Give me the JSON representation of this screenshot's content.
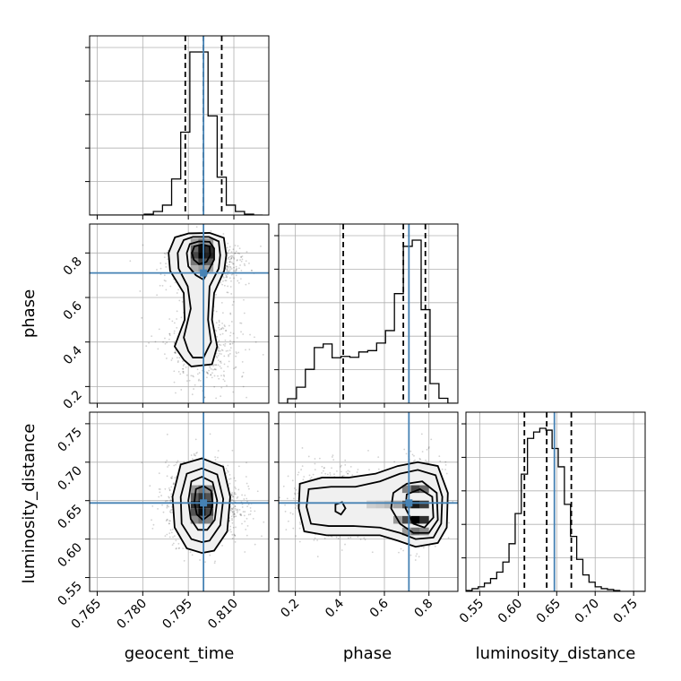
{
  "chart_data": {
    "type": "corner",
    "parameters": [
      "geocent_time",
      "phase",
      "luminosity_distance"
    ],
    "truth_color": "#4682b4",
    "truths": {
      "geocent_time": 0.8,
      "phase": 0.71,
      "luminosity_distance": 0.647
    },
    "ranges": {
      "geocent_time": [
        0.7625,
        0.8215
      ],
      "phase": [
        0.125,
        0.93
      ],
      "luminosity_distance": [
        0.532,
        0.765
      ]
    },
    "ticks": {
      "geocent_time": [
        0.765,
        0.78,
        0.795,
        0.81
      ],
      "phase": [
        0.2,
        0.4,
        0.6,
        0.8
      ],
      "luminosity_distance": [
        0.55,
        0.6,
        0.65,
        0.7,
        0.75
      ]
    },
    "tick_labels": {
      "geocent_time": [
        "0.765",
        "0.780",
        "0.795",
        "0.810"
      ],
      "phase": [
        "0.2",
        "0.4",
        "0.6",
        "0.8"
      ],
      "luminosity_distance": [
        "0.55",
        "0.60",
        "0.65",
        "0.70",
        "0.75"
      ]
    },
    "axis_labels": {
      "geocent_time": "geocent_time",
      "phase": "phase",
      "luminosity_distance": "luminosity_distance"
    },
    "quantiles": {
      "geocent_time": [
        0.794,
        0.8,
        0.806
      ],
      "phase": [
        0.415,
        0.685,
        0.784
      ],
      "luminosity_distance": [
        0.608,
        0.637,
        0.669
      ]
    },
    "histograms": {
      "geocent_time": {
        "edges": [
          0.7625,
          0.7655,
          0.7685,
          0.7715,
          0.7745,
          0.7775,
          0.7805,
          0.7835,
          0.7865,
          0.7895,
          0.7925,
          0.7955,
          0.7985,
          0.8015,
          0.8045,
          0.8075,
          0.8105,
          0.8135,
          0.8165,
          0.8195
        ],
        "counts": [
          0,
          0,
          0,
          0,
          0,
          0,
          1,
          4,
          11,
          40,
          92,
          181,
          181,
          110,
          42,
          11,
          4,
          1,
          0
        ]
      },
      "phase": {
        "edges": [
          0.125,
          0.165,
          0.205,
          0.245,
          0.285,
          0.325,
          0.365,
          0.405,
          0.445,
          0.485,
          0.525,
          0.565,
          0.605,
          0.645,
          0.685,
          0.725,
          0.765,
          0.805,
          0.845,
          0.885,
          0.925
        ],
        "counts": [
          0,
          10,
          36,
          76,
          125,
          133,
          102,
          105,
          103,
          115,
          118,
          135,
          163,
          246,
          352,
          366,
          210,
          44,
          11,
          0
        ]
      },
      "luminosity_distance": {
        "edges": [
          0.532,
          0.54,
          0.548,
          0.556,
          0.564,
          0.572,
          0.58,
          0.588,
          0.596,
          0.604,
          0.612,
          0.62,
          0.628,
          0.636,
          0.644,
          0.652,
          0.66,
          0.668,
          0.676,
          0.684,
          0.692,
          0.7,
          0.708,
          0.716,
          0.724,
          0.732,
          0.74,
          0.748,
          0.756,
          0.764
        ],
        "counts": [
          1,
          3,
          5,
          9,
          14,
          21,
          32,
          52,
          85,
          128,
          167,
          174,
          178,
          176,
          156,
          136,
          95,
          60,
          35,
          18,
          10,
          5,
          3,
          2,
          1,
          0,
          0,
          0,
          0
        ]
      }
    },
    "contours_2d": [
      {
        "x": "geocent_time",
        "y": "phase",
        "levels": [
          [
            [
              0.7906,
              0.87
            ],
            [
              0.7952,
              0.888
            ],
            [
              0.802,
              0.89
            ],
            [
              0.8067,
              0.868
            ],
            [
              0.8075,
              0.79
            ],
            [
              0.8068,
              0.72
            ],
            [
              0.8035,
              0.62
            ],
            [
              0.8028,
              0.5
            ],
            [
              0.8045,
              0.38
            ],
            [
              0.8028,
              0.3
            ],
            [
              0.796,
              0.29
            ],
            [
              0.7935,
              0.32
            ],
            [
              0.7905,
              0.38
            ],
            [
              0.7938,
              0.5
            ],
            [
              0.7935,
              0.62
            ],
            [
              0.789,
              0.72
            ],
            [
              0.7885,
              0.8
            ]
          ],
          [
            [
              0.7935,
              0.858
            ],
            [
              0.7965,
              0.872
            ],
            [
              0.8018,
              0.872
            ],
            [
              0.805,
              0.852
            ],
            [
              0.8055,
              0.79
            ],
            [
              0.805,
              0.73
            ],
            [
              0.802,
              0.65
            ],
            [
              0.8015,
              0.5
            ],
            [
              0.8025,
              0.4
            ],
            [
              0.8,
              0.33
            ],
            [
              0.7965,
              0.33
            ],
            [
              0.795,
              0.36
            ],
            [
              0.7935,
              0.42
            ],
            [
              0.7958,
              0.55
            ],
            [
              0.7948,
              0.65
            ],
            [
              0.7918,
              0.73
            ],
            [
              0.7915,
              0.8
            ]
          ],
          [
            [
              0.7955,
              0.84
            ],
            [
              0.7985,
              0.852
            ],
            [
              0.802,
              0.85
            ],
            [
              0.8035,
              0.82
            ],
            [
              0.8035,
              0.77
            ],
            [
              0.802,
              0.73
            ],
            [
              0.8,
              0.68
            ],
            [
              0.7975,
              0.7
            ],
            [
              0.795,
              0.74
            ],
            [
              0.7945,
              0.8
            ]
          ],
          [
            [
              0.797,
              0.83
            ],
            [
              0.7995,
              0.838
            ],
            [
              0.802,
              0.83
            ],
            [
              0.8022,
              0.79
            ],
            [
              0.801,
              0.76
            ],
            [
              0.7985,
              0.75
            ],
            [
              0.7968,
              0.77
            ],
            [
              0.7962,
              0.8
            ]
          ]
        ],
        "density": [
          {
            "x": 0.797,
            "y": 0.82,
            "v": 0.55
          },
          {
            "x": 0.7995,
            "y": 0.82,
            "v": 0.95
          },
          {
            "x": 0.802,
            "y": 0.82,
            "v": 0.8
          },
          {
            "x": 0.797,
            "y": 0.79,
            "v": 0.7
          },
          {
            "x": 0.7995,
            "y": 0.79,
            "v": 1.0
          },
          {
            "x": 0.802,
            "y": 0.79,
            "v": 0.85
          },
          {
            "x": 0.797,
            "y": 0.76,
            "v": 0.5
          },
          {
            "x": 0.7995,
            "y": 0.76,
            "v": 0.75
          },
          {
            "x": 0.802,
            "y": 0.76,
            "v": 0.6
          },
          {
            "x": 0.797,
            "y": 0.73,
            "v": 0.25
          },
          {
            "x": 0.7995,
            "y": 0.73,
            "v": 0.35
          },
          {
            "x": 0.802,
            "y": 0.73,
            "v": 0.3
          },
          {
            "x": 0.797,
            "y": 0.85,
            "v": 0.3
          },
          {
            "x": 0.7995,
            "y": 0.85,
            "v": 0.45
          },
          {
            "x": 0.802,
            "y": 0.85,
            "v": 0.35
          }
        ]
      },
      {
        "x": "geocent_time",
        "y": "luminosity_distance",
        "levels": [
          [
            [
              0.7925,
              0.697
            ],
            [
              0.7995,
              0.705
            ],
            [
              0.8065,
              0.694
            ],
            [
              0.8088,
              0.655
            ],
            [
              0.8078,
              0.61
            ],
            [
              0.8035,
              0.585
            ],
            [
              0.7995,
              0.582
            ],
            [
              0.7945,
              0.588
            ],
            [
              0.7905,
              0.615
            ],
            [
              0.7898,
              0.655
            ]
          ],
          [
            [
              0.7945,
              0.685
            ],
            [
              0.7995,
              0.692
            ],
            [
              0.8045,
              0.684
            ],
            [
              0.8065,
              0.652
            ],
            [
              0.8055,
              0.618
            ],
            [
              0.802,
              0.598
            ],
            [
              0.7995,
              0.596
            ],
            [
              0.796,
              0.6
            ],
            [
              0.7928,
              0.62
            ],
            [
              0.7925,
              0.655
            ]
          ],
          [
            [
              0.796,
              0.675
            ],
            [
              0.7995,
              0.681
            ],
            [
              0.803,
              0.674
            ],
            [
              0.8045,
              0.65
            ],
            [
              0.8037,
              0.625
            ],
            [
              0.8012,
              0.612
            ],
            [
              0.7982,
              0.612
            ],
            [
              0.7958,
              0.626
            ],
            [
              0.795,
              0.65
            ]
          ],
          [
            [
              0.7975,
              0.665
            ],
            [
              0.8,
              0.669
            ],
            [
              0.8025,
              0.663
            ],
            [
              0.803,
              0.647
            ],
            [
              0.8022,
              0.632
            ],
            [
              0.7998,
              0.625
            ],
            [
              0.7978,
              0.632
            ],
            [
              0.797,
              0.648
            ]
          ]
        ],
        "density": [
          {
            "x": 0.797,
            "y": 0.665,
            "v": 0.35
          },
          {
            "x": 0.7995,
            "y": 0.665,
            "v": 0.5
          },
          {
            "x": 0.802,
            "y": 0.665,
            "v": 0.4
          },
          {
            "x": 0.797,
            "y": 0.655,
            "v": 0.6
          },
          {
            "x": 0.7995,
            "y": 0.655,
            "v": 0.8
          },
          {
            "x": 0.802,
            "y": 0.655,
            "v": 0.65
          },
          {
            "x": 0.797,
            "y": 0.645,
            "v": 0.8
          },
          {
            "x": 0.7995,
            "y": 0.645,
            "v": 1.0
          },
          {
            "x": 0.802,
            "y": 0.645,
            "v": 0.85
          },
          {
            "x": 0.797,
            "y": 0.635,
            "v": 0.65
          },
          {
            "x": 0.7995,
            "y": 0.635,
            "v": 0.95
          },
          {
            "x": 0.802,
            "y": 0.635,
            "v": 0.7
          },
          {
            "x": 0.797,
            "y": 0.625,
            "v": 0.4
          },
          {
            "x": 0.7995,
            "y": 0.625,
            "v": 0.55
          },
          {
            "x": 0.802,
            "y": 0.625,
            "v": 0.45
          }
        ]
      },
      {
        "x": "phase",
        "y": "luminosity_distance",
        "levels": [
          [
            [
              0.22,
              0.672
            ],
            [
              0.32,
              0.68
            ],
            [
              0.44,
              0.68
            ],
            [
              0.56,
              0.685
            ],
            [
              0.66,
              0.695
            ],
            [
              0.75,
              0.7
            ],
            [
              0.84,
              0.695
            ],
            [
              0.885,
              0.66
            ],
            [
              0.88,
              0.615
            ],
            [
              0.84,
              0.595
            ],
            [
              0.74,
              0.59
            ],
            [
              0.66,
              0.598
            ],
            [
              0.58,
              0.605
            ],
            [
              0.46,
              0.605
            ],
            [
              0.34,
              0.605
            ],
            [
              0.24,
              0.61
            ],
            [
              0.215,
              0.64
            ]
          ],
          [
            [
              0.26,
              0.665
            ],
            [
              0.36,
              0.668
            ],
            [
              0.47,
              0.668
            ],
            [
              0.58,
              0.675
            ],
            [
              0.67,
              0.685
            ],
            [
              0.75,
              0.69
            ],
            [
              0.83,
              0.683
            ],
            [
              0.86,
              0.655
            ],
            [
              0.855,
              0.62
            ],
            [
              0.82,
              0.602
            ],
            [
              0.74,
              0.6
            ],
            [
              0.67,
              0.608
            ],
            [
              0.58,
              0.615
            ],
            [
              0.46,
              0.617
            ],
            [
              0.35,
              0.617
            ],
            [
              0.27,
              0.62
            ],
            [
              0.25,
              0.642
            ]
          ],
          [
            [
              0.64,
              0.66
            ],
            [
              0.7,
              0.672
            ],
            [
              0.77,
              0.675
            ],
            [
              0.835,
              0.66
            ],
            [
              0.84,
              0.625
            ],
            [
              0.8,
              0.608
            ],
            [
              0.73,
              0.608
            ],
            [
              0.67,
              0.62
            ],
            [
              0.63,
              0.64
            ]
          ],
          [
            [
              0.7,
              0.658
            ],
            [
              0.76,
              0.665
            ],
            [
              0.815,
              0.655
            ],
            [
              0.82,
              0.628
            ],
            [
              0.78,
              0.615
            ],
            [
              0.73,
              0.62
            ],
            [
              0.695,
              0.64
            ]
          ],
          [
            [
              0.38,
              0.645
            ],
            [
              0.41,
              0.648
            ],
            [
              0.425,
              0.64
            ],
            [
              0.405,
              0.632
            ],
            [
              0.38,
              0.636
            ]
          ]
        ],
        "density": [
          {
            "x": 0.7,
            "y": 0.665,
            "v": 0.45
          },
          {
            "x": 0.74,
            "y": 0.665,
            "v": 0.7
          },
          {
            "x": 0.78,
            "y": 0.665,
            "v": 0.55
          },
          {
            "x": 0.7,
            "y": 0.645,
            "v": 0.65
          },
          {
            "x": 0.74,
            "y": 0.645,
            "v": 0.9
          },
          {
            "x": 0.78,
            "y": 0.645,
            "v": 0.75
          },
          {
            "x": 0.7,
            "y": 0.625,
            "v": 0.7
          },
          {
            "x": 0.74,
            "y": 0.625,
            "v": 1.0
          },
          {
            "x": 0.78,
            "y": 0.625,
            "v": 0.8
          },
          {
            "x": 0.7,
            "y": 0.61,
            "v": 0.35
          },
          {
            "x": 0.74,
            "y": 0.61,
            "v": 0.5
          },
          {
            "x": 0.78,
            "y": 0.61,
            "v": 0.4
          },
          {
            "x": 0.58,
            "y": 0.645,
            "v": 0.15
          },
          {
            "x": 0.62,
            "y": 0.645,
            "v": 0.2
          },
          {
            "x": 0.54,
            "y": 0.645,
            "v": 0.12
          },
          {
            "x": 0.66,
            "y": 0.645,
            "v": 0.3
          },
          {
            "x": 0.66,
            "y": 0.625,
            "v": 0.35
          }
        ]
      }
    ],
    "scatter_spread": {
      "geocent_time": 0.006,
      "phase_modes": [
        [
          0.38,
          0.1
        ],
        [
          0.75,
          0.05
        ]
      ],
      "luminosity_distance": 0.025
    }
  }
}
